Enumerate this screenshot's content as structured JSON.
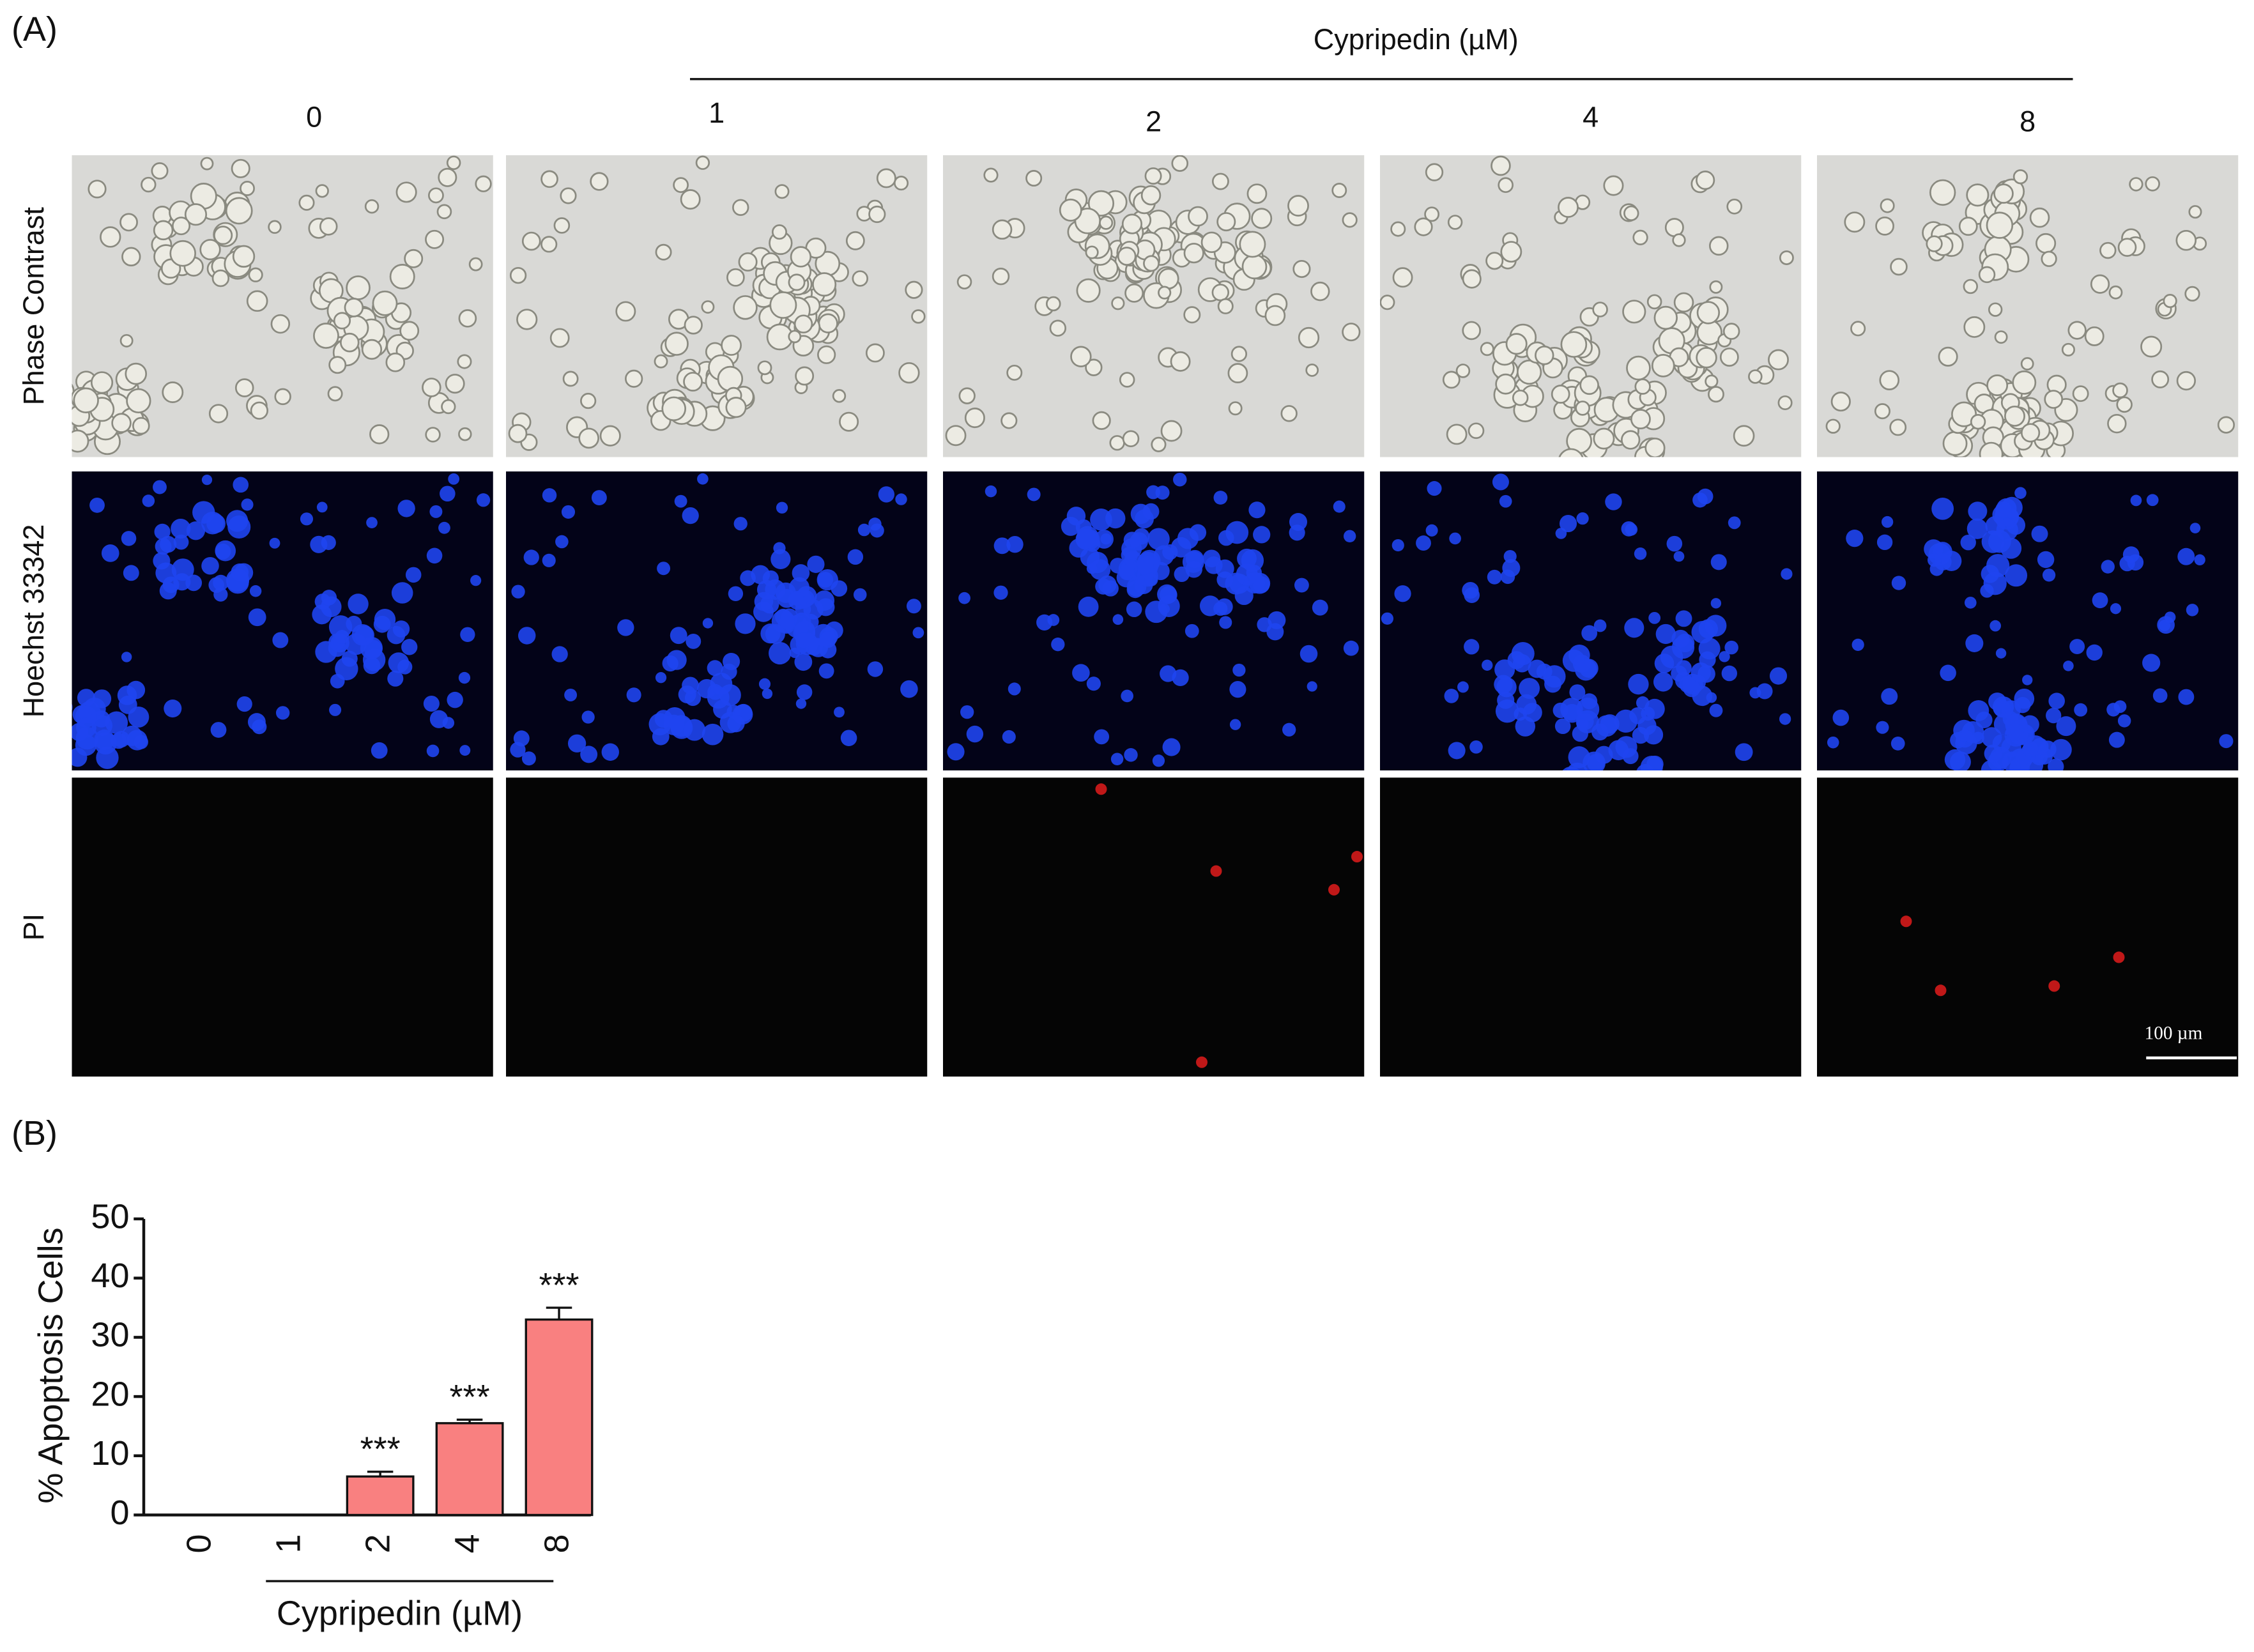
{
  "panel_a": {
    "label": "(A)",
    "treatment_label": "Cypripedin (µM)",
    "concentrations": [
      "0",
      "1",
      "2",
      "4",
      "8"
    ],
    "rows": [
      "Phase Contrast",
      "Hoechst 33342",
      "PI"
    ],
    "scale_bar": "100 µm"
  },
  "chart_data": {
    "type": "bar",
    "panel_label": "(B)",
    "categories": [
      "0",
      "1",
      "2",
      "4",
      "8"
    ],
    "values": [
      0,
      0,
      6.5,
      15.5,
      33
    ],
    "errors": [
      0,
      0,
      0.8,
      0.6,
      2
    ],
    "annotations": [
      null,
      null,
      "***",
      "***",
      "***"
    ],
    "ylabel": "% Apoptosis Cells",
    "xlabel": "Cypripedin (µM)",
    "ylim": [
      0,
      50
    ],
    "yticks": [
      0,
      10,
      20,
      30,
      40,
      50
    ],
    "color": "#f98080"
  }
}
